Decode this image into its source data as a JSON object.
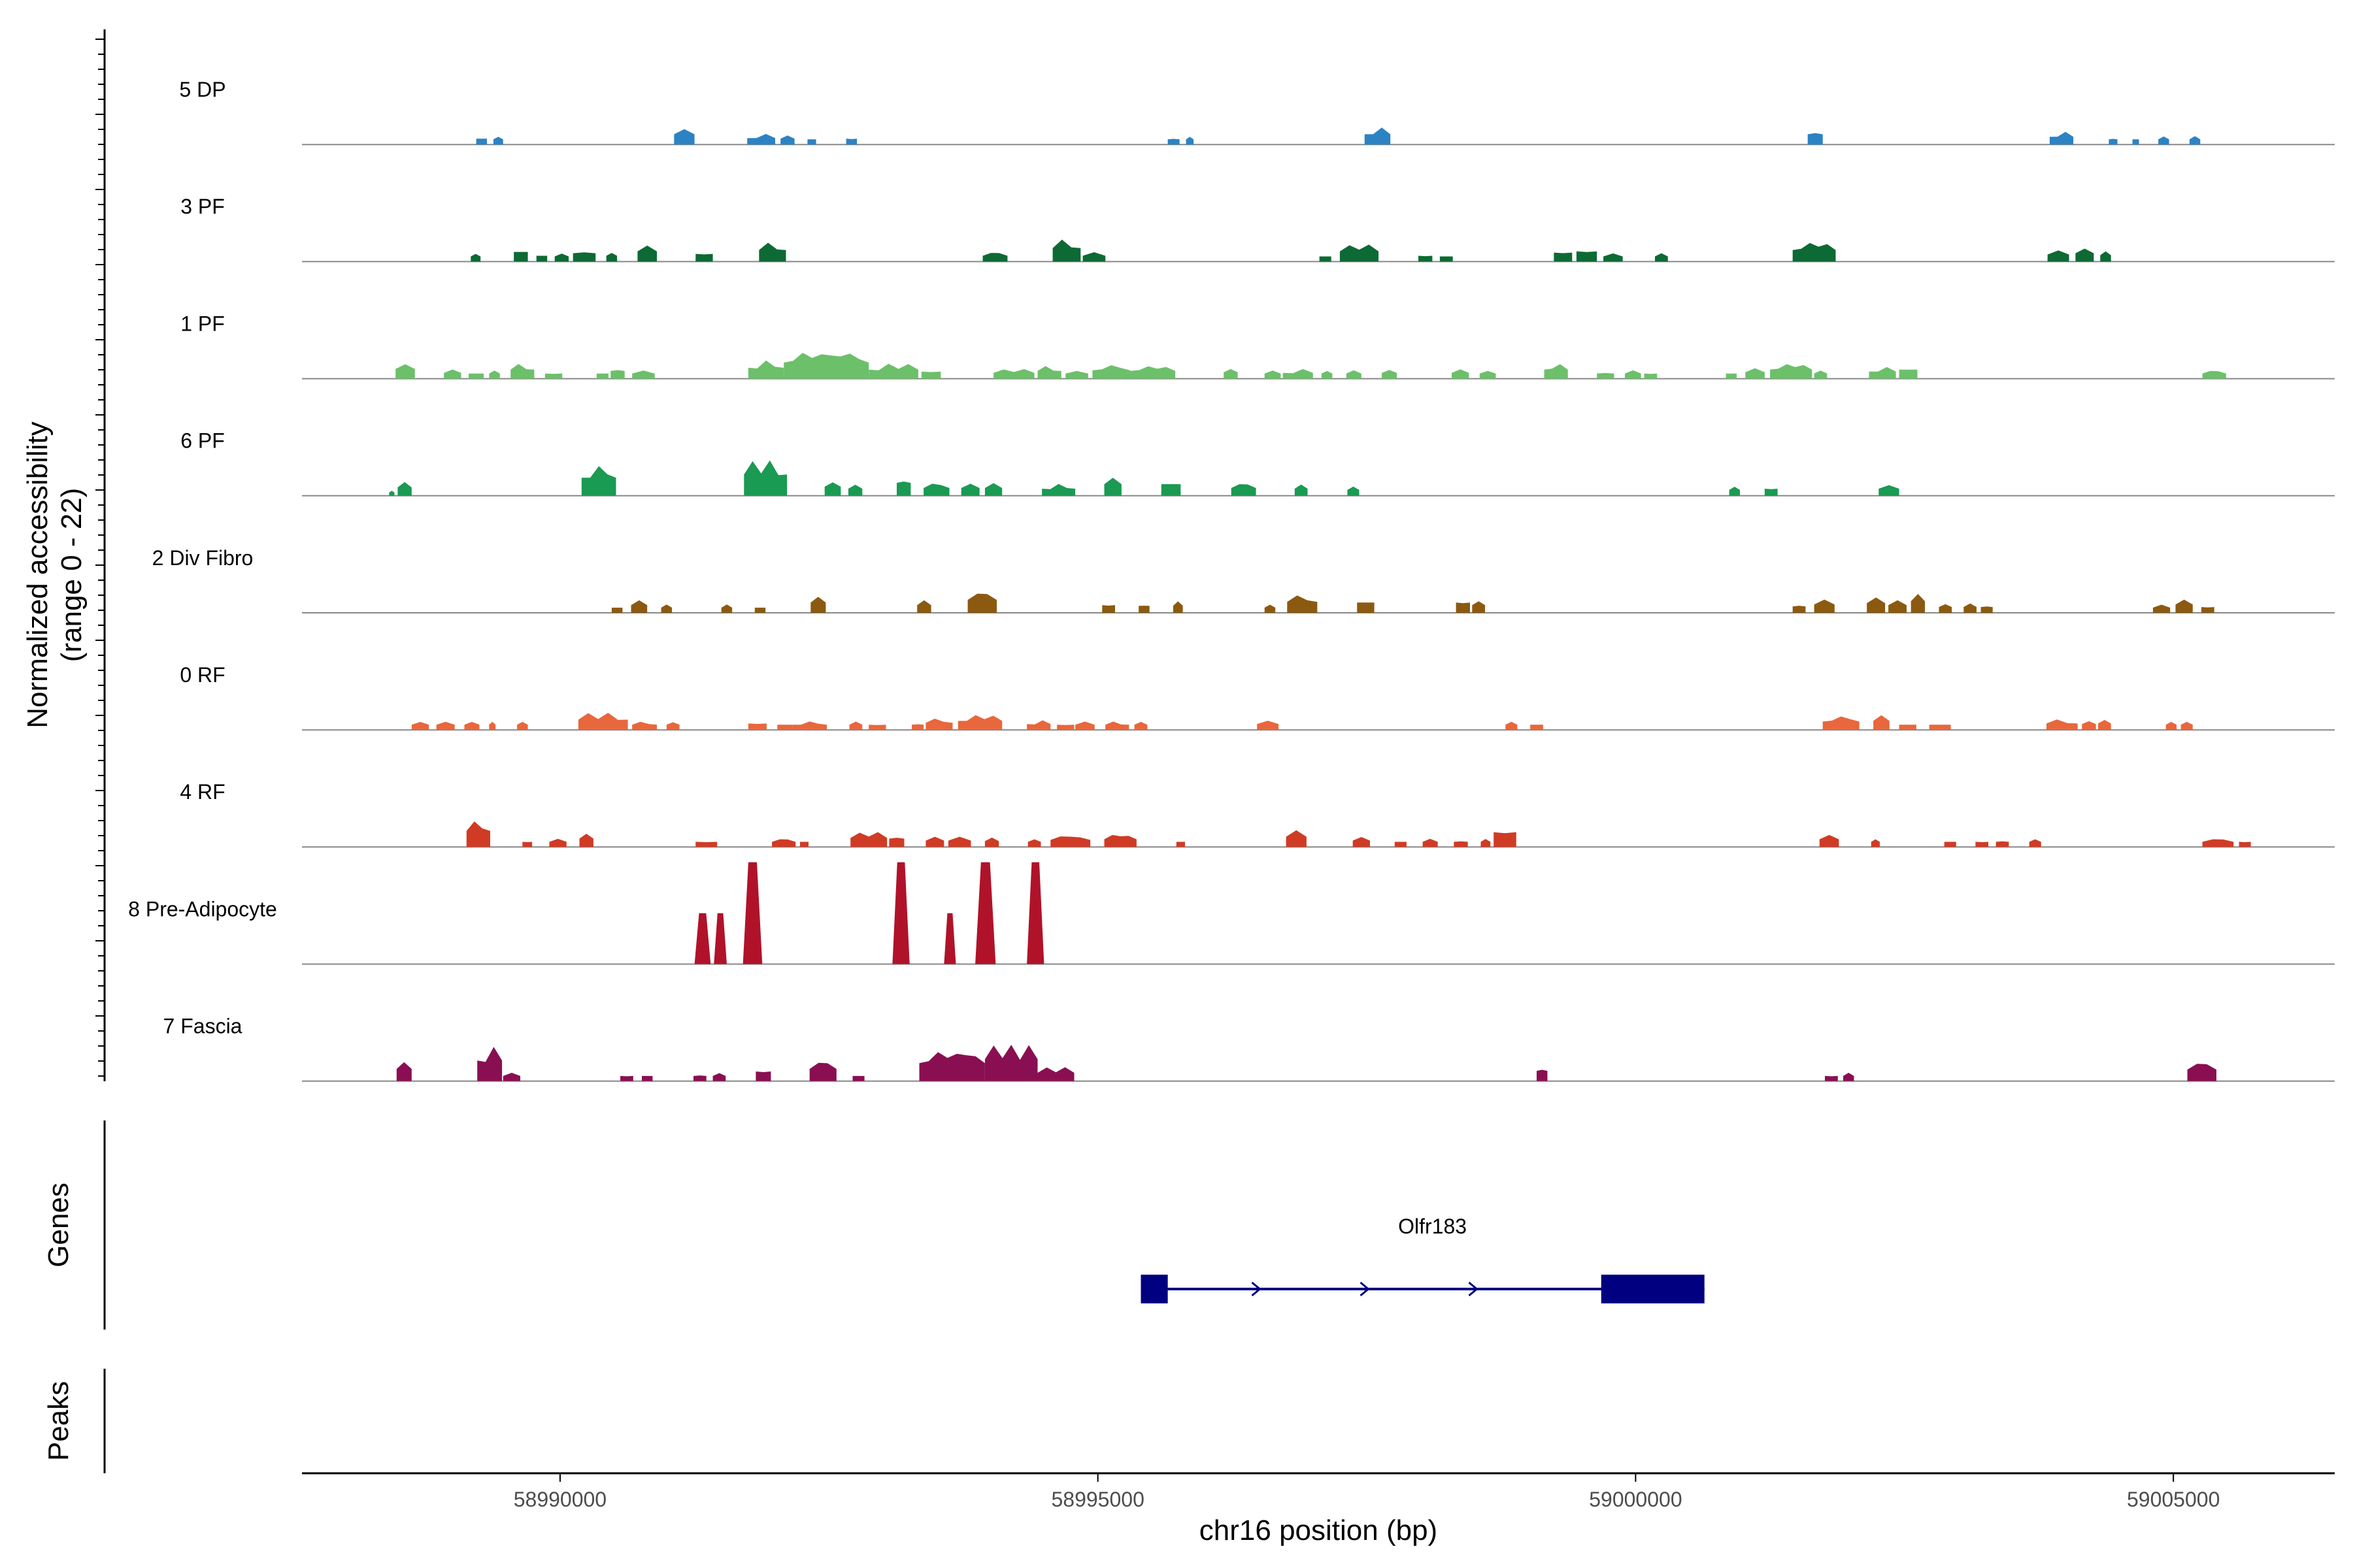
{
  "chart_data": {
    "type": "area",
    "ylabel_line1": "Normalized accessibility",
    "ylabel_line2": "(range 0 - 22)",
    "ylim": [
      0,
      22
    ],
    "xlabel": "chr16 position (bp)",
    "xlim": [
      58987600,
      59006500
    ],
    "xticks": [
      58990000,
      58995000,
      59000000,
      59005000
    ],
    "xtick_labels": [
      "58990000",
      "58995000",
      "59000000",
      "59005000"
    ],
    "tracks": [
      {
        "name": "5 DP",
        "color": "#2b83c4",
        "peaks": [
          [
            58989220,
            58989320,
            1.8
          ],
          [
            58989380,
            58989470,
            1.6
          ],
          [
            58991060,
            58991250,
            3.2
          ],
          [
            58991740,
            58992000,
            2.0
          ],
          [
            58992050,
            58992180,
            1.8
          ],
          [
            58992300,
            58992380,
            1.6
          ],
          [
            58992660,
            58992760,
            1.8
          ],
          [
            58995650,
            58995760,
            1.6
          ],
          [
            58995820,
            58995890,
            1.6
          ],
          [
            58997480,
            58997720,
            3.2
          ],
          [
            59001600,
            59001740,
            3.2
          ],
          [
            59003850,
            59004070,
            2.4
          ],
          [
            59004400,
            59004480,
            1.6
          ],
          [
            59004620,
            59004680,
            1.6
          ],
          [
            59004860,
            59004960,
            1.6
          ],
          [
            59005150,
            59005250,
            1.6
          ]
        ]
      },
      {
        "name": "3 PF",
        "color": "#0d6a34",
        "peaks": [
          [
            58989170,
            58989260,
            1.6
          ],
          [
            58989570,
            58989700,
            3.0
          ],
          [
            58989780,
            58989880,
            1.8
          ],
          [
            58989950,
            58990080,
            1.6
          ],
          [
            58990120,
            58990330,
            2.6
          ],
          [
            58990430,
            58990530,
            1.8
          ],
          [
            58990720,
            58990900,
            3.2
          ],
          [
            58991260,
            58991420,
            2.4
          ],
          [
            58991850,
            58992100,
            3.6
          ],
          [
            58993930,
            58994160,
            1.8
          ],
          [
            58994580,
            58994840,
            4.2
          ],
          [
            58994860,
            58995070,
            1.8
          ],
          [
            58997060,
            58997170,
            1.6
          ],
          [
            58997250,
            58997610,
            3.2
          ],
          [
            58997980,
            58998110,
            1.8
          ],
          [
            58998180,
            58998300,
            1.6
          ],
          [
            58999240,
            58999410,
            2.8
          ],
          [
            58999450,
            58999640,
            3.2
          ],
          [
            58999700,
            58999880,
            1.6
          ],
          [
            59000180,
            59000300,
            1.6
          ],
          [
            59001460,
            59001860,
            3.6
          ],
          [
            59003830,
            59004030,
            2.2
          ],
          [
            59004090,
            59004260,
            2.6
          ],
          [
            59004320,
            59004420,
            2.0
          ]
        ]
      },
      {
        "name": "1 PF",
        "color": "#6cc06a",
        "peaks": [
          [
            58988470,
            58988650,
            3.0
          ],
          [
            58988920,
            58989080,
            1.8
          ],
          [
            58989150,
            58989290,
            1.6
          ],
          [
            58989340,
            58989440,
            1.6
          ],
          [
            58989540,
            58989760,
            2.8
          ],
          [
            58989860,
            58990020,
            1.6
          ],
          [
            58990340,
            58990450,
            1.6
          ],
          [
            58990470,
            58990600,
            2.4
          ],
          [
            58990670,
            58990880,
            1.6
          ],
          [
            58991750,
            58992080,
            3.4
          ],
          [
            58992080,
            58992870,
            5.0
          ],
          [
            58992870,
            58993330,
            2.8
          ],
          [
            58993360,
            58993540,
            2.2
          ],
          [
            58994030,
            58994410,
            1.8
          ],
          [
            58994440,
            58994660,
            2.4
          ],
          [
            58994700,
            58994910,
            1.6
          ],
          [
            58994950,
            58995300,
            2.6
          ],
          [
            58995300,
            58995720,
            2.4
          ],
          [
            58996170,
            58996300,
            2.0
          ],
          [
            58996550,
            58996700,
            1.6
          ],
          [
            58996720,
            58997000,
            1.8
          ],
          [
            58997080,
            58997180,
            1.6
          ],
          [
            58997310,
            58997450,
            1.6
          ],
          [
            58997640,
            58997780,
            1.8
          ],
          [
            58998290,
            58998450,
            1.8
          ],
          [
            58998550,
            58998700,
            1.6
          ],
          [
            58999150,
            58999370,
            2.8
          ],
          [
            58999640,
            58999800,
            1.6
          ],
          [
            58999900,
            59000050,
            1.6
          ],
          [
            59000080,
            59000200,
            1.6
          ],
          [
            59000840,
            59000940,
            1.6
          ],
          [
            59001020,
            59001200,
            2.0
          ],
          [
            59001250,
            59001640,
            2.8
          ],
          [
            59001660,
            59001780,
            1.6
          ],
          [
            59002170,
            59002420,
            2.2
          ],
          [
            59002450,
            59002620,
            2.8
          ],
          [
            59005270,
            59005490,
            1.6
          ]
        ]
      },
      {
        "name": "6 PF",
        "color": "#1a9a52",
        "peaks": [
          [
            58988410,
            58988460,
            1.0
          ],
          [
            58988490,
            58988620,
            2.6
          ],
          [
            58990200,
            58990520,
            5.6
          ],
          [
            58991710,
            58992110,
            6.6
          ],
          [
            58992460,
            58992610,
            2.8
          ],
          [
            58992680,
            58992810,
            2.2
          ],
          [
            58993130,
            58993260,
            4.0
          ],
          [
            58993380,
            58993620,
            2.4
          ],
          [
            58993730,
            58993900,
            2.4
          ],
          [
            58993950,
            58994110,
            2.4
          ],
          [
            58994480,
            58994790,
            2.2
          ],
          [
            58995060,
            58995220,
            3.6
          ],
          [
            58995590,
            58995770,
            3.6
          ],
          [
            58996240,
            58996470,
            2.4
          ],
          [
            58996830,
            58996950,
            2.2
          ],
          [
            58997320,
            58997430,
            1.8
          ],
          [
            59000870,
            59000970,
            1.8
          ],
          [
            59001200,
            59001320,
            2.2
          ],
          [
            59002260,
            59002450,
            2.2
          ]
        ]
      },
      {
        "name": "2 Div Fibro",
        "color": "#8b5a10",
        "peaks": [
          [
            58990480,
            58990580,
            1.6
          ],
          [
            58990660,
            58990810,
            2.4
          ],
          [
            58990940,
            58991040,
            1.6
          ],
          [
            58991500,
            58991600,
            1.6
          ],
          [
            58991810,
            58991910,
            1.6
          ],
          [
            58992330,
            58992470,
            3.2
          ],
          [
            58993320,
            58993450,
            2.4
          ],
          [
            58993790,
            58994060,
            4.0
          ],
          [
            58995040,
            58995160,
            2.4
          ],
          [
            58995380,
            58995480,
            2.2
          ],
          [
            58995700,
            58995790,
            2.2
          ],
          [
            58996550,
            58996650,
            1.6
          ],
          [
            58996760,
            58997040,
            3.4
          ],
          [
            58997410,
            58997570,
            3.2
          ],
          [
            58998330,
            58998460,
            3.2
          ],
          [
            58998480,
            58998600,
            2.4
          ],
          [
            59001460,
            59001580,
            2.0
          ],
          [
            59001660,
            59001850,
            2.6
          ],
          [
            59002150,
            59002320,
            3.0
          ],
          [
            59002350,
            59002520,
            2.4
          ],
          [
            59002560,
            59002690,
            3.6
          ],
          [
            59002820,
            59002940,
            1.8
          ],
          [
            59003050,
            59003170,
            1.8
          ],
          [
            59003210,
            59003320,
            1.8
          ],
          [
            59004810,
            59004970,
            1.6
          ],
          [
            59005020,
            59005180,
            2.6
          ],
          [
            59005260,
            59005380,
            1.8
          ]
        ]
      },
      {
        "name": "0 RF",
        "color": "#e8673c",
        "peaks": [
          [
            58988620,
            58988780,
            1.6
          ],
          [
            58988850,
            58989020,
            1.6
          ],
          [
            58989110,
            58989250,
            1.6
          ],
          [
            58989340,
            58989400,
            1.6
          ],
          [
            58989600,
            58989700,
            1.6
          ],
          [
            58990170,
            58990630,
            3.2
          ],
          [
            58990670,
            58990900,
            1.6
          ],
          [
            58990990,
            58991110,
            1.6
          ],
          [
            58991750,
            58991920,
            2.0
          ],
          [
            58992020,
            58992160,
            1.6
          ],
          [
            58992160,
            58992480,
            1.6
          ],
          [
            58992690,
            58992810,
            1.6
          ],
          [
            58992870,
            58993030,
            1.6
          ],
          [
            58993270,
            58993380,
            1.6
          ],
          [
            58993400,
            58993650,
            2.2
          ],
          [
            58993700,
            58994110,
            2.8
          ],
          [
            58994340,
            58994560,
            1.8
          ],
          [
            58994620,
            58994780,
            1.6
          ],
          [
            58994790,
            58994970,
            1.6
          ],
          [
            58995070,
            58995290,
            1.6
          ],
          [
            58995340,
            58995460,
            1.6
          ],
          [
            58996480,
            58996680,
            1.8
          ],
          [
            58998790,
            58998900,
            1.6
          ],
          [
            58999020,
            58999140,
            1.6
          ],
          [
            59001740,
            59002080,
            2.6
          ],
          [
            59002210,
            59002360,
            2.8
          ],
          [
            59002450,
            59002610,
            1.6
          ],
          [
            59002730,
            59002930,
            1.6
          ],
          [
            59003820,
            59004110,
            2.0
          ],
          [
            59004150,
            59004280,
            1.8
          ],
          [
            59004300,
            59004420,
            2.0
          ],
          [
            59004930,
            59005030,
            1.6
          ],
          [
            59005070,
            59005180,
            1.6
          ]
        ]
      },
      {
        "name": "4 RF",
        "color": "#d03b25",
        "peaks": [
          [
            58989130,
            58989350,
            5.0
          ],
          [
            58989650,
            58989740,
            1.6
          ],
          [
            58989900,
            58990060,
            1.6
          ],
          [
            58990180,
            58990310,
            2.6
          ],
          [
            58991260,
            58991460,
            1.6
          ],
          [
            58991970,
            58992190,
            1.6
          ],
          [
            58992230,
            58992310,
            1.6
          ],
          [
            58992700,
            58993040,
            2.8
          ],
          [
            58993060,
            58993200,
            2.6
          ],
          [
            58993400,
            58993570,
            2.0
          ],
          [
            58993610,
            58993820,
            2.0
          ],
          [
            58993950,
            58994080,
            1.8
          ],
          [
            58994350,
            58994470,
            1.6
          ],
          [
            58994560,
            58994930,
            2.2
          ],
          [
            58995060,
            58995360,
            2.4
          ],
          [
            58995730,
            58995810,
            1.6
          ],
          [
            58996750,
            58996940,
            3.2
          ],
          [
            58997370,
            58997530,
            2.0
          ],
          [
            58997760,
            58997870,
            1.6
          ],
          [
            58998020,
            58998160,
            1.6
          ],
          [
            58998310,
            58998440,
            1.6
          ],
          [
            58998560,
            58998650,
            1.6
          ],
          [
            58998680,
            58998890,
            4.6
          ],
          [
            59001710,
            59001890,
            2.4
          ],
          [
            59002190,
            59002270,
            1.6
          ],
          [
            59002870,
            59002980,
            1.6
          ],
          [
            59003160,
            59003280,
            1.6
          ],
          [
            59003350,
            59003470,
            1.6
          ],
          [
            59003660,
            59003770,
            1.6
          ],
          [
            59005270,
            59005560,
            1.6
          ],
          [
            59005610,
            59005720,
            1.6
          ]
        ]
      },
      {
        "name": "8 Pre-Adipocyte",
        "color": "#b0122a",
        "peaks": [
          [
            58991250,
            58991400,
            9.5
          ],
          [
            58991430,
            58991550,
            9.5
          ],
          [
            58991700,
            58991880,
            19.0
          ],
          [
            58993090,
            58993250,
            19.0
          ],
          [
            58993570,
            58993680,
            9.5
          ],
          [
            58993860,
            58994050,
            19.0
          ],
          [
            58994340,
            58994500,
            19.0
          ]
        ]
      },
      {
        "name": "7 Fascia",
        "color": "#8a0f52",
        "peaks": [
          [
            58988480,
            58988620,
            3.8
          ],
          [
            58989230,
            58989460,
            6.4
          ],
          [
            58989470,
            58989630,
            1.6
          ],
          [
            58990560,
            58990680,
            1.6
          ],
          [
            58990760,
            58990860,
            1.6
          ],
          [
            58991240,
            58991360,
            1.6
          ],
          [
            58991420,
            58991540,
            1.6
          ],
          [
            58991820,
            58991960,
            3.0
          ],
          [
            58992320,
            58992570,
            3.8
          ],
          [
            58992720,
            58992830,
            1.6
          ],
          [
            58993340,
            58993950,
            5.6
          ],
          [
            58993950,
            58994440,
            6.8
          ],
          [
            58994440,
            58994780,
            2.6
          ],
          [
            58999080,
            58999180,
            3.2
          ],
          [
            59001760,
            59001880,
            1.6
          ],
          [
            59001930,
            59002030,
            1.6
          ],
          [
            59005130,
            59005400,
            3.6
          ]
        ]
      }
    ],
    "gene": {
      "name": "Olfr183",
      "start": 58995400,
      "end": 59000640,
      "color": "#000080",
      "exons": [
        [
          58995400,
          58995650
        ],
        [
          58999680,
          59000640
        ]
      ]
    },
    "panel_labels": {
      "genes": "Genes",
      "peaks": "Peaks"
    }
  }
}
